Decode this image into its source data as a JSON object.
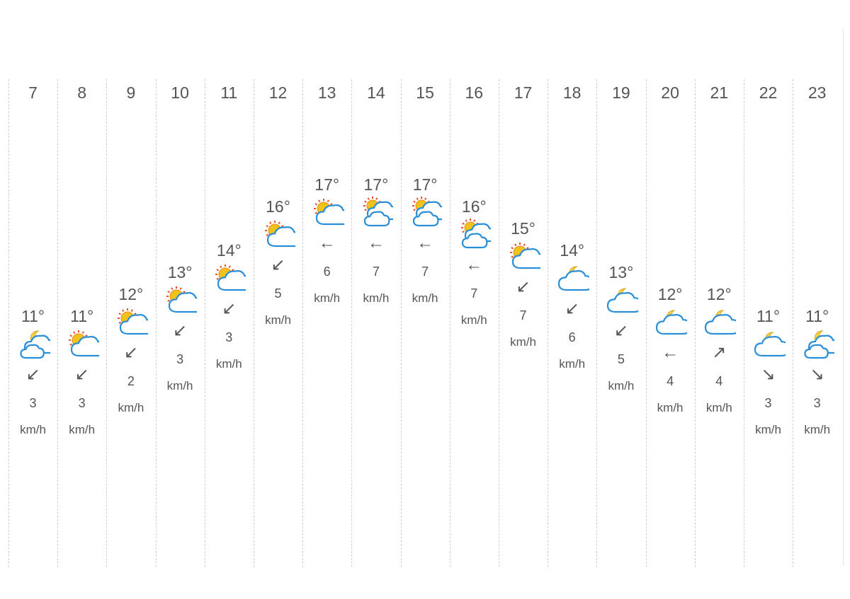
{
  "forecast": {
    "hours": [
      {
        "hour": "7",
        "temp": "11°",
        "icon": "partly-cloudy-night-icon",
        "arrow": "↙",
        "speed": "3",
        "unit": "km/h",
        "level": 11
      },
      {
        "hour": "8",
        "temp": "11°",
        "icon": "partly-sunny-icon",
        "arrow": "↙",
        "speed": "3",
        "unit": "km/h",
        "level": 11
      },
      {
        "hour": "9",
        "temp": "12°",
        "icon": "partly-sunny-icon",
        "arrow": "↙",
        "speed": "2",
        "unit": "km/h",
        "level": 12
      },
      {
        "hour": "10",
        "temp": "13°",
        "icon": "partly-sunny-icon",
        "arrow": "↙",
        "speed": "3",
        "unit": "km/h",
        "level": 13
      },
      {
        "hour": "11",
        "temp": "14°",
        "icon": "partly-sunny-icon",
        "arrow": "↙",
        "speed": "3",
        "unit": "km/h",
        "level": 14
      },
      {
        "hour": "12",
        "temp": "16°",
        "icon": "partly-sunny-icon",
        "arrow": "↙",
        "speed": "5",
        "unit": "km/h",
        "level": 16
      },
      {
        "hour": "13",
        "temp": "17°",
        "icon": "partly-sunny-icon",
        "arrow": "←",
        "speed": "6",
        "unit": "km/h",
        "level": 17
      },
      {
        "hour": "14",
        "temp": "17°",
        "icon": "sun-clouds-icon",
        "arrow": "←",
        "speed": "7",
        "unit": "km/h",
        "level": 17
      },
      {
        "hour": "15",
        "temp": "17°",
        "icon": "sun-clouds-icon",
        "arrow": "←",
        "speed": "7",
        "unit": "km/h",
        "level": 17
      },
      {
        "hour": "16",
        "temp": "16°",
        "icon": "sun-clouds-icon",
        "arrow": "←",
        "speed": "7",
        "unit": "km/h",
        "level": 16
      },
      {
        "hour": "17",
        "temp": "15°",
        "icon": "partly-sunny-icon",
        "arrow": "↙",
        "speed": "7",
        "unit": "km/h",
        "level": 15
      },
      {
        "hour": "18",
        "temp": "14°",
        "icon": "cloud-moon-icon",
        "arrow": "↙",
        "speed": "6",
        "unit": "km/h",
        "level": 14
      },
      {
        "hour": "19",
        "temp": "13°",
        "icon": "cloud-moon-icon",
        "arrow": "↙",
        "speed": "5",
        "unit": "km/h",
        "level": 13
      },
      {
        "hour": "20",
        "temp": "12°",
        "icon": "cloud-moon-icon",
        "arrow": "←",
        "speed": "4",
        "unit": "km/h",
        "level": 12
      },
      {
        "hour": "21",
        "temp": "12°",
        "icon": "cloud-moon-icon",
        "arrow": "↗",
        "speed": "4",
        "unit": "km/h",
        "level": 12
      },
      {
        "hour": "22",
        "temp": "11°",
        "icon": "cloud-moon-icon",
        "arrow": "↘",
        "speed": "3",
        "unit": "km/h",
        "level": 11
      },
      {
        "hour": "23",
        "temp": "11°",
        "icon": "partly-cloudy-night-icon",
        "arrow": "↘",
        "speed": "3",
        "unit": "km/h",
        "level": 11
      }
    ],
    "colors": {
      "cloud_stroke": "#2a8fd6",
      "sun_fill": "#f2c21b",
      "sun_ray": "#e8532b",
      "moon_fill": "#f7d24a",
      "grid": "#cfcfcf"
    }
  }
}
